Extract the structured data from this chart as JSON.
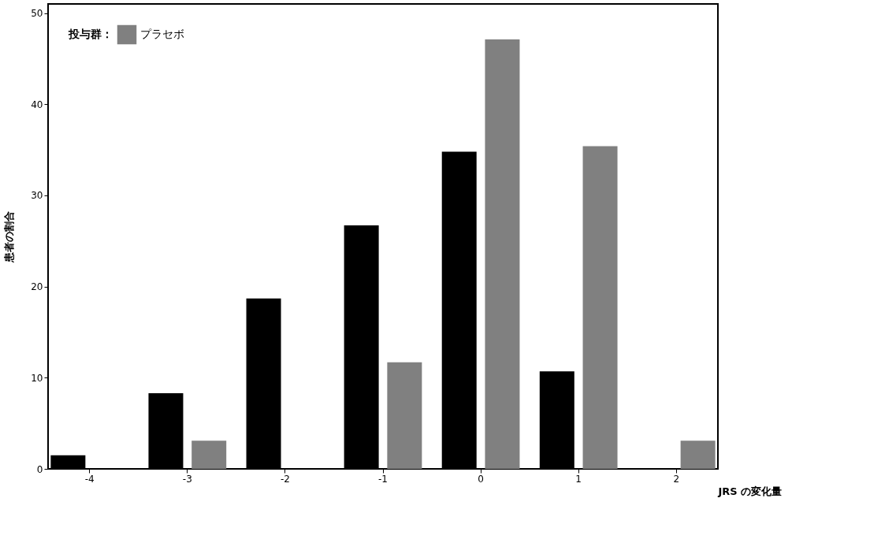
{
  "chart_data": {
    "type": "bar",
    "xlabel": "JRS の変化量",
    "ylabel": "患者の割合",
    "legend_title": "投与群：",
    "categories": [
      "-4",
      "-3",
      "-2",
      "-1",
      "0",
      "1",
      "2"
    ],
    "series": [
      {
        "color": "#000000",
        "values": [
          1.5,
          8.3,
          18.7,
          26.7,
          34.8,
          10.7,
          0
        ]
      },
      {
        "name": "プラセボ",
        "color": "#808080",
        "values": [
          0,
          3.1,
          0,
          11.7,
          47.1,
          35.4,
          3.1
        ]
      }
    ],
    "ylim": [
      0,
      51
    ],
    "yticks": [
      0,
      10,
      20,
      30,
      40,
      50
    ],
    "grid": false,
    "legend": "top left"
  }
}
